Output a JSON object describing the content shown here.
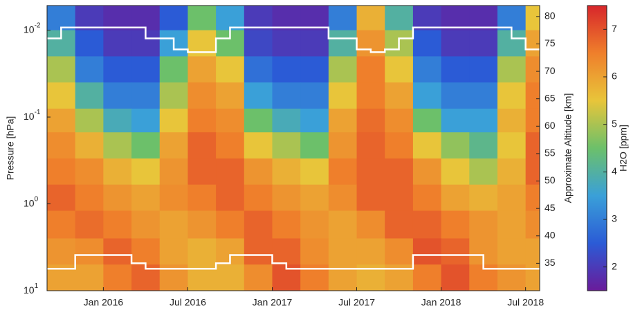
{
  "chart_data": {
    "type": "heatmap",
    "ylabel": "Pressure [hPa]",
    "y2label": "Approximate Altitude [km]",
    "xlim": [
      "2015-09",
      "2018-08"
    ],
    "xticks": [
      {
        "value": "2016-01",
        "label": "Jan 2016"
      },
      {
        "value": "2016-07",
        "label": "Jul 2016"
      },
      {
        "value": "2017-01",
        "label": "Jan 2017"
      },
      {
        "value": "2017-07",
        "label": "Jul 2017"
      },
      {
        "value": "2018-01",
        "label": "Jan 2018"
      },
      {
        "value": "2018-07",
        "label": "Jul 2018"
      }
    ],
    "ylim": [
      0.0052,
      10
    ],
    "log_y": true,
    "y_inverted": true,
    "yticks": [
      {
        "value": 0.01,
        "label": "10",
        "exponent": "-2"
      },
      {
        "value": 0.1,
        "label": "10",
        "exponent": "-1"
      },
      {
        "value": 1,
        "label": "10",
        "exponent": "0"
      },
      {
        "value": 10,
        "label": "10",
        "exponent": "1"
      }
    ],
    "y2lim": [
      30,
      82
    ],
    "y2ticks": [
      35,
      40,
      45,
      50,
      55,
      60,
      65,
      70,
      75,
      80
    ],
    "x_edges": [
      "2015-09",
      "2015-11",
      "2016-01",
      "2016-03",
      "2016-05",
      "2016-07",
      "2016-09",
      "2016-11",
      "2017-01",
      "2017-03",
      "2017-05",
      "2017-07",
      "2017-09",
      "2017-11",
      "2018-01",
      "2018-03",
      "2018-05",
      "2018-07",
      "2018-09"
    ],
    "p_edges": [
      0.0052,
      0.01,
      0.02,
      0.04,
      0.08,
      0.15,
      0.3,
      0.6,
      1.2,
      2.5,
      5,
      10
    ],
    "z": [
      [
        3,
        2,
        1.8,
        1.8,
        2.5,
        4.5,
        3.5,
        2,
        1.8,
        1.8,
        3,
        5.8,
        4,
        2,
        1.8,
        1.8,
        3,
        5.5
      ],
      [
        4,
        2.5,
        2,
        2,
        3.5,
        5.5,
        4.5,
        2.2,
        2,
        2,
        4,
        6.2,
        5,
        2.5,
        2,
        2,
        4,
        6
      ],
      [
        5,
        3,
        2.5,
        2.5,
        4.5,
        6,
        5.5,
        2.8,
        2.5,
        2.5,
        5,
        6.5,
        5.5,
        3,
        2.5,
        2.5,
        5,
        6.3
      ],
      [
        5.5,
        4,
        3,
        3,
        5,
        6.3,
        6,
        3.5,
        3,
        3,
        5.5,
        6.5,
        6,
        3.5,
        3,
        3,
        5.5,
        6.5
      ],
      [
        6,
        5,
        3.8,
        3.5,
        5.5,
        6.5,
        6.3,
        4.5,
        3.8,
        3.5,
        6,
        6.7,
        6.3,
        4.5,
        3.5,
        3.5,
        5.8,
        6.5
      ],
      [
        6.3,
        5.8,
        5,
        4.5,
        6,
        6.8,
        6.5,
        5.5,
        5,
        4.5,
        6.2,
        6.8,
        6.5,
        5.5,
        4.8,
        4.2,
        5.5,
        6.8
      ],
      [
        6.5,
        6.3,
        5.8,
        5.5,
        6.2,
        6.8,
        6.8,
        6.2,
        5.8,
        5.5,
        6.5,
        6.8,
        6.8,
        6.2,
        5.5,
        5,
        5.8,
        6.8
      ],
      [
        6.8,
        6.5,
        6.2,
        6,
        6.3,
        6.5,
        6.8,
        6.5,
        6.2,
        6,
        6.3,
        6.8,
        6.8,
        6.5,
        6,
        5.8,
        6,
        6.5
      ],
      [
        6.5,
        6.7,
        6.5,
        6.2,
        6,
        6.2,
        6.5,
        6.8,
        6.5,
        6.2,
        6,
        6.3,
        6.8,
        6.8,
        6.5,
        6.2,
        6,
        6.3
      ],
      [
        6.2,
        6.3,
        6.8,
        6.5,
        6,
        5.8,
        6,
        6.8,
        6.8,
        6.3,
        6,
        6,
        6.3,
        7,
        6.8,
        6.2,
        6,
        6
      ],
      [
        6,
        6,
        6.5,
        6.8,
        6.2,
        5.8,
        5.8,
        6.3,
        7,
        6.5,
        6,
        5.8,
        6,
        6.5,
        7,
        6.5,
        6.2,
        6
      ]
    ],
    "x": [
      "2015-09",
      "2015-10",
      "2015-11",
      "2015-12",
      "2016-01",
      "2016-02",
      "2016-03",
      "2016-04",
      "2016-05",
      "2016-06",
      "2016-07",
      "2016-08",
      "2016-09",
      "2016-10",
      "2016-11",
      "2016-12",
      "2017-01",
      "2017-02",
      "2017-03",
      "2017-04",
      "2017-05",
      "2017-06",
      "2017-07",
      "2017-08",
      "2017-09",
      "2017-10",
      "2017-11",
      "2017-12",
      "2018-01",
      "2018-02",
      "2018-03",
      "2018-04",
      "2018-05",
      "2018-06",
      "2018-07",
      "2018-08",
      "2018-09"
    ],
    "series": [
      {
        "color": "#ffffff",
        "axis": "y2",
        "values": [
          76,
          78,
          78,
          78,
          78,
          78,
          78,
          76,
          76,
          74,
          73.5,
          73.5,
          76,
          78,
          78,
          78,
          78,
          78,
          78,
          78,
          76,
          76,
          74,
          73.5,
          74,
          76,
          78,
          78,
          78,
          78,
          78,
          78,
          78,
          76,
          74,
          74,
          75
        ]
      },
      {
        "color": "#ffffff",
        "axis": "y2",
        "values": [
          34,
          34,
          36.5,
          36.5,
          36.5,
          36.5,
          35,
          34,
          34,
          34,
          34,
          34,
          35,
          36.5,
          36.5,
          36.5,
          35,
          34,
          34,
          34,
          34,
          34,
          34,
          34,
          34,
          34,
          36.5,
          36.5,
          36.5,
          36.5,
          36.5,
          34,
          34,
          34,
          34,
          34,
          34
        ]
      }
    ],
    "colorbar": {
      "label": "H2O [ppm]",
      "lim": [
        1.5,
        7.5
      ],
      "ticks": [
        2,
        3,
        4,
        5,
        6,
        7
      ],
      "colors": [
        "#6a1b9a",
        "#2b5bd6",
        "#3aa0d8",
        "#6cc06a",
        "#e8c53a",
        "#ef7f2b",
        "#d7262b"
      ]
    }
  }
}
